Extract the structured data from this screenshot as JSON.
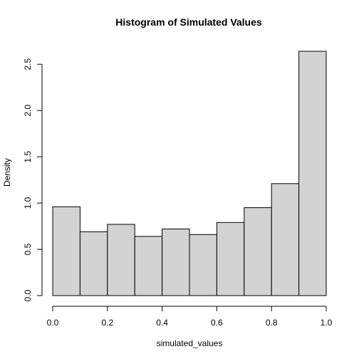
{
  "chart_data": {
    "type": "bar",
    "title": "Histogram of Simulated Values",
    "xlabel": "simulated_values",
    "ylabel": "Density",
    "bins": [
      {
        "start": 0.0,
        "end": 0.1,
        "density": 0.96
      },
      {
        "start": 0.1,
        "end": 0.2,
        "density": 0.69
      },
      {
        "start": 0.2,
        "end": 0.3,
        "density": 0.77
      },
      {
        "start": 0.3,
        "end": 0.4,
        "density": 0.64
      },
      {
        "start": 0.4,
        "end": 0.5,
        "density": 0.72
      },
      {
        "start": 0.5,
        "end": 0.6,
        "density": 0.66
      },
      {
        "start": 0.6,
        "end": 0.7,
        "density": 0.79
      },
      {
        "start": 0.7,
        "end": 0.8,
        "density": 0.95
      },
      {
        "start": 0.8,
        "end": 0.9,
        "density": 1.21
      },
      {
        "start": 0.9,
        "end": 1.0,
        "density": 2.64
      }
    ],
    "xlim": [
      0.0,
      1.0
    ],
    "ylim": [
      0.0,
      2.64
    ],
    "x_ticks": [
      "0.0",
      "0.2",
      "0.4",
      "0.6",
      "0.8",
      "1.0"
    ],
    "y_ticks": [
      "0.0",
      "0.5",
      "1.0",
      "1.5",
      "2.0",
      "2.5"
    ],
    "bar_color": "#d3d3d3",
    "grid": false,
    "legend": "none"
  }
}
